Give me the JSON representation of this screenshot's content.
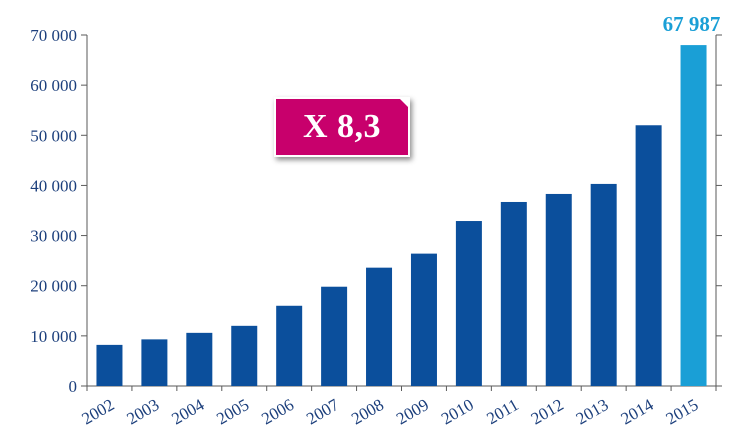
{
  "chart_data": {
    "type": "bar",
    "categories": [
      "2002",
      "2003",
      "2004",
      "2005",
      "2006",
      "2007",
      "2008",
      "2009",
      "2010",
      "2011",
      "2012",
      "2013",
      "2014",
      "2015"
    ],
    "values": [
      8200,
      9300,
      10600,
      12000,
      16000,
      19800,
      23600,
      26400,
      32900,
      36700,
      38300,
      40300,
      52000,
      67987
    ],
    "ylim": [
      0,
      70000
    ],
    "yticks": [
      0,
      10000,
      20000,
      30000,
      40000,
      50000,
      60000,
      70000
    ],
    "ytick_labels": [
      "0",
      "10 000",
      "20 000",
      "30 000",
      "40 000",
      "50 000",
      "60 000",
      "70 000"
    ],
    "grid": false,
    "bar_color": "#0b4f9c",
    "highlight_color": "#1a9fd6",
    "highlight_index": 13,
    "highlight_label": "67 987",
    "xlabel": "",
    "ylabel": ""
  },
  "badge": {
    "text": "X 8,3",
    "color": "#c8006c"
  }
}
